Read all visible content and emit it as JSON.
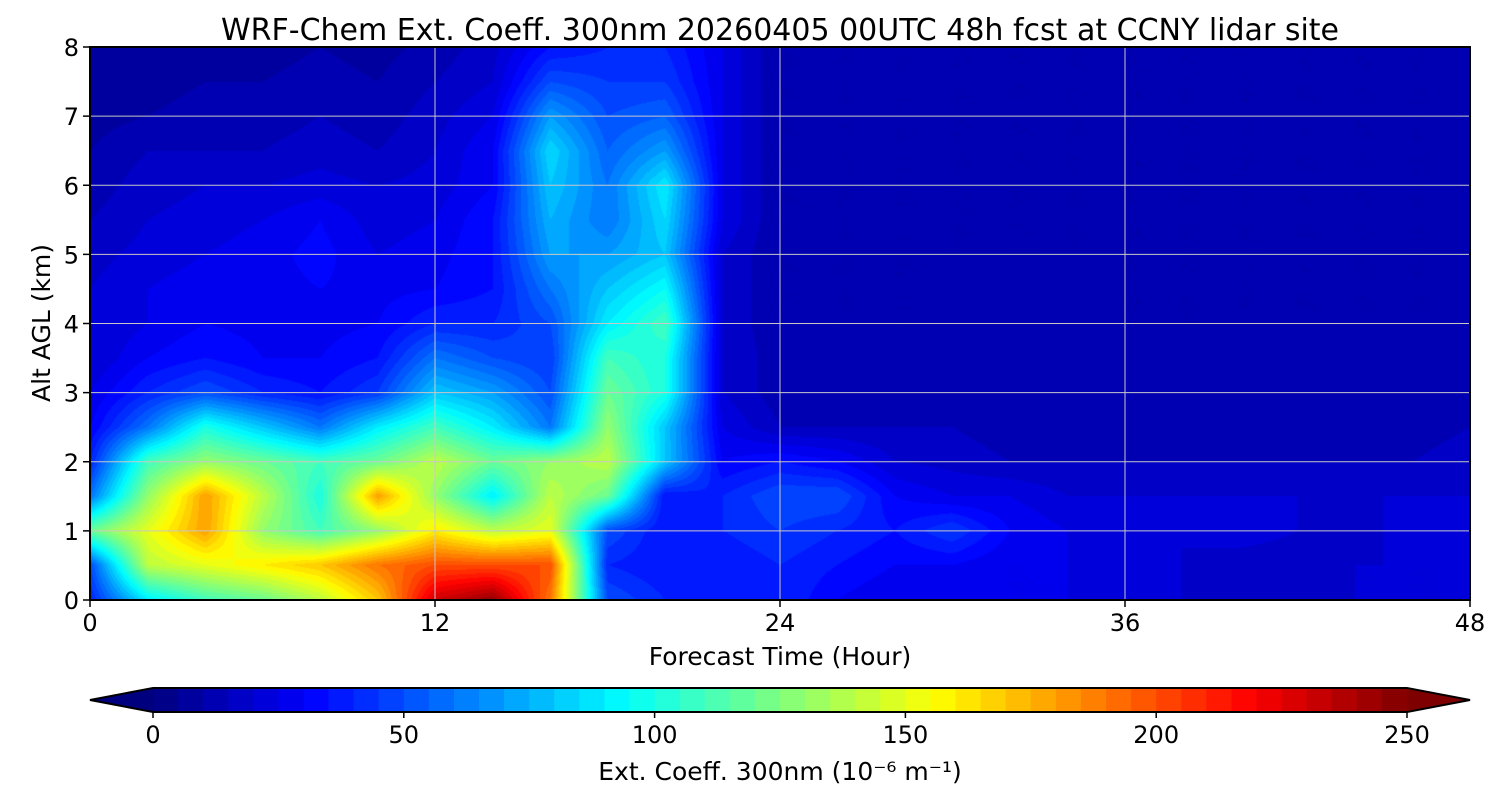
{
  "chart_data": {
    "type": "heatmap",
    "title": "WRF-Chem Ext. Coeff. 300nm  20260405 00UTC 48h fcst at CCNY lidar site",
    "xlabel": "Forecast Time (Hour)",
    "ylabel": "Alt AGL (km)",
    "xlim": [
      0,
      48
    ],
    "ylim": [
      0,
      8
    ],
    "xticks": [
      0,
      12,
      24,
      36,
      48
    ],
    "yticks": [
      0,
      1,
      2,
      3,
      4,
      5,
      6,
      7,
      8
    ],
    "grid": true,
    "colormap": "jet",
    "colorbar": {
      "label": "Ext. Coeff. 300nm  (10⁻⁶ m⁻¹)",
      "range": [
        0,
        250
      ],
      "ticks": [
        0,
        50,
        100,
        150,
        200,
        250
      ],
      "extend": "both",
      "placement": "bottom"
    },
    "x": [
      0,
      2,
      4,
      6,
      8,
      10,
      12,
      14,
      16,
      18,
      20,
      22,
      24,
      26,
      28,
      30,
      32,
      34,
      36,
      38,
      40,
      42,
      44,
      46,
      48
    ],
    "y": [
      0,
      0.5,
      1,
      1.5,
      2,
      2.5,
      3,
      3.5,
      4,
      4.5,
      5,
      5.5,
      6,
      6.5,
      7,
      7.5,
      8
    ],
    "z": [
      [
        40,
        90,
        110,
        120,
        140,
        170,
        230,
        245,
        190,
        50,
        40,
        35,
        40,
        30,
        25,
        25,
        25,
        25,
        25,
        20,
        20,
        20,
        20,
        20,
        20
      ],
      [
        50,
        140,
        150,
        160,
        170,
        190,
        200,
        200,
        200,
        40,
        35,
        35,
        40,
        35,
        30,
        30,
        25,
        25,
        20,
        20,
        15,
        15,
        20,
        20,
        20
      ],
      [
        120,
        150,
        180,
        130,
        110,
        130,
        160,
        140,
        150,
        50,
        35,
        40,
        45,
        40,
        35,
        45,
        30,
        25,
        25,
        20,
        25,
        20,
        15,
        25,
        20
      ],
      [
        60,
        130,
        180,
        140,
        100,
        180,
        130,
        90,
        140,
        120,
        35,
        40,
        50,
        50,
        30,
        25,
        25,
        20,
        20,
        20,
        20,
        20,
        20,
        20,
        20
      ],
      [
        40,
        110,
        130,
        120,
        110,
        120,
        140,
        120,
        130,
        140,
        80,
        30,
        35,
        30,
        20,
        18,
        15,
        15,
        15,
        15,
        15,
        15,
        15,
        15,
        18
      ],
      [
        30,
        60,
        100,
        80,
        60,
        90,
        110,
        90,
        60,
        130,
        80,
        25,
        15,
        15,
        15,
        15,
        12,
        12,
        12,
        12,
        12,
        12,
        12,
        12,
        15
      ],
      [
        25,
        40,
        50,
        40,
        35,
        45,
        80,
        70,
        50,
        120,
        100,
        20,
        12,
        12,
        12,
        12,
        12,
        12,
        12,
        12,
        12,
        12,
        12,
        12,
        12
      ],
      [
        20,
        30,
        35,
        30,
        30,
        35,
        60,
        50,
        45,
        110,
        100,
        20,
        12,
        12,
        12,
        12,
        12,
        12,
        12,
        12,
        12,
        12,
        12,
        12,
        12
      ],
      [
        20,
        25,
        30,
        28,
        28,
        30,
        40,
        40,
        50,
        90,
        110,
        20,
        10,
        10,
        10,
        10,
        12,
        12,
        10,
        10,
        10,
        10,
        10,
        10,
        10
      ],
      [
        20,
        25,
        28,
        28,
        30,
        28,
        30,
        35,
        60,
        80,
        95,
        20,
        10,
        10,
        10,
        10,
        12,
        12,
        10,
        10,
        10,
        10,
        10,
        10,
        10
      ],
      [
        18,
        22,
        25,
        28,
        32,
        25,
        28,
        35,
        70,
        70,
        80,
        20,
        10,
        10,
        10,
        10,
        10,
        10,
        10,
        10,
        10,
        10,
        10,
        10,
        10
      ],
      [
        15,
        20,
        22,
        25,
        30,
        22,
        25,
        35,
        75,
        60,
        85,
        25,
        10,
        10,
        10,
        10,
        10,
        10,
        10,
        10,
        10,
        10,
        10,
        10,
        10
      ],
      [
        12,
        18,
        20,
        20,
        22,
        20,
        22,
        30,
        80,
        60,
        90,
        25,
        10,
        10,
        10,
        10,
        10,
        10,
        10,
        10,
        10,
        10,
        10,
        10,
        10
      ],
      [
        10,
        15,
        15,
        15,
        18,
        15,
        20,
        30,
        85,
        55,
        70,
        25,
        10,
        10,
        10,
        10,
        10,
        10,
        10,
        10,
        10,
        10,
        10,
        10,
        10
      ],
      [
        8,
        10,
        12,
        12,
        15,
        12,
        18,
        25,
        70,
        50,
        55,
        25,
        10,
        10,
        10,
        10,
        10,
        10,
        10,
        10,
        10,
        10,
        10,
        10,
        10
      ],
      [
        5,
        8,
        10,
        10,
        12,
        10,
        15,
        20,
        50,
        45,
        45,
        25,
        10,
        10,
        10,
        10,
        10,
        10,
        10,
        10,
        10,
        10,
        10,
        10,
        10
      ],
      [
        5,
        8,
        8,
        8,
        10,
        8,
        12,
        18,
        35,
        40,
        40,
        25,
        10,
        10,
        10,
        10,
        10,
        10,
        10,
        10,
        10,
        10,
        10,
        10,
        10
      ]
    ]
  }
}
